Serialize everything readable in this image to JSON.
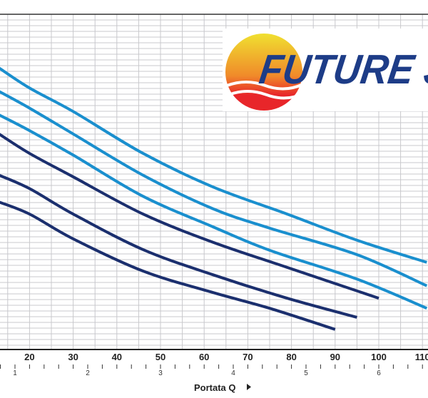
{
  "chart_data": {
    "type": "line",
    "title": "",
    "xlabel": "Portata Q",
    "xlabel_arrow_icon": "triangle-right-icon",
    "ylabel": "",
    "x_primary_ticks": [
      20,
      30,
      40,
      50,
      60,
      70,
      80,
      90,
      100,
      110
    ],
    "x_secondary_ticks": [
      1,
      2,
      3,
      4,
      5,
      6
    ],
    "xlim": [
      13,
      111
    ],
    "ylim_relative": [
      0,
      100
    ],
    "grid": true,
    "series": [
      {
        "color": "#1a8fce",
        "points": [
          [
            13,
            84
          ],
          [
            20,
            78
          ],
          [
            30,
            71
          ],
          [
            46,
            58.5
          ],
          [
            62,
            48.5
          ],
          [
            79,
            40.4
          ],
          [
            95,
            32.6
          ],
          [
            111,
            26
          ]
        ]
      },
      {
        "color": "#1a8fce",
        "points": [
          [
            13,
            77
          ],
          [
            20,
            72
          ],
          [
            30,
            64.3
          ],
          [
            46,
            52
          ],
          [
            62,
            42
          ],
          [
            75,
            36.2
          ],
          [
            95,
            28.3
          ],
          [
            111,
            19
          ]
        ]
      },
      {
        "color": "#1a8fce",
        "points": [
          [
            13,
            70
          ],
          [
            20,
            65.3
          ],
          [
            30,
            58
          ],
          [
            46,
            45.7
          ],
          [
            62,
            36.6
          ],
          [
            75,
            29.6
          ],
          [
            95,
            21
          ],
          [
            111,
            12.3
          ]
        ]
      },
      {
        "color": "#1b2f6e",
        "points": [
          [
            13,
            64.3
          ],
          [
            20,
            58.5
          ],
          [
            30,
            51.5
          ],
          [
            46,
            40.4
          ],
          [
            62,
            32
          ],
          [
            79,
            24.5
          ],
          [
            100,
            15.3
          ]
        ]
      },
      {
        "color": "#1b2f6e",
        "points": [
          [
            13,
            52
          ],
          [
            20,
            48
          ],
          [
            30,
            40.4
          ],
          [
            46,
            29.8
          ],
          [
            62,
            22.3
          ],
          [
            79,
            15.3
          ],
          [
            95,
            9.6
          ]
        ]
      },
      {
        "color": "#1b2f6e",
        "points": [
          [
            13,
            44
          ],
          [
            20,
            40.4
          ],
          [
            30,
            33
          ],
          [
            46,
            23.4
          ],
          [
            62,
            17
          ],
          [
            75,
            12.3
          ],
          [
            90,
            6
          ]
        ]
      }
    ]
  },
  "logo": {
    "text": "FUTURE J",
    "colors": {
      "text": "#1d3c87",
      "sun_top": "#f0e030",
      "sun_bottom": "#e8262a"
    }
  },
  "colors": {
    "grid": "#c8c8cc",
    "axis": "#222222"
  }
}
